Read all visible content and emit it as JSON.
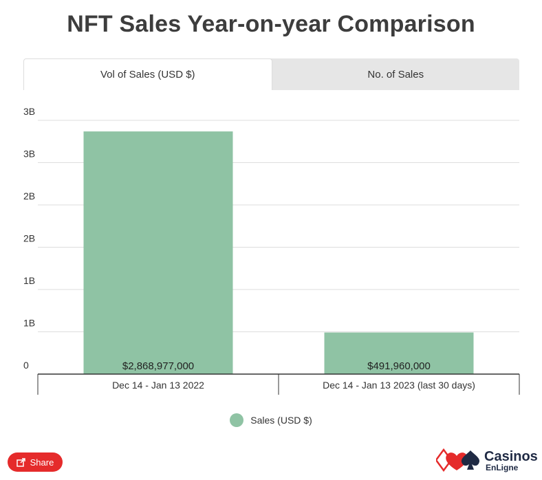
{
  "title": "NFT Sales Year-on-year Comparison",
  "tabs": [
    {
      "label": "Vol of Sales (USD $)",
      "active": true
    },
    {
      "label": "No. of Sales",
      "active": false
    }
  ],
  "colors": {
    "bar": "#8fc3a4",
    "share": "#e52b2b",
    "logo_red": "#e52b2b",
    "logo_navy": "#1f2a44"
  },
  "chart_data": {
    "type": "bar",
    "title": "NFT Sales Year-on-year Comparison",
    "categories": [
      "Dec 14 - Jan 13 2022",
      "Dec 14 - Jan 13 2023 (last 30 days)"
    ],
    "series": [
      {
        "name": "Sales (USD $)",
        "values": [
          2868977000,
          491960000
        ]
      }
    ],
    "data_labels": [
      "$2,868,977,000",
      "$491,960,000"
    ],
    "ylim": [
      0,
      3000000000
    ],
    "yticks": [
      0,
      500000000,
      1000000000,
      1500000000,
      2000000000,
      2500000000,
      3000000000
    ],
    "ytick_labels": [
      "0",
      "1B",
      "1B",
      "2B",
      "2B",
      "3B",
      "3B"
    ],
    "xlabel": "",
    "ylabel": "",
    "grid": true,
    "legend": "bottom-center"
  },
  "legend": {
    "label": "Sales (USD $)"
  },
  "share": {
    "label": "Share",
    "icon": "share-icon"
  },
  "logo": {
    "main": "Casinos",
    "sub": "EnLigne"
  }
}
